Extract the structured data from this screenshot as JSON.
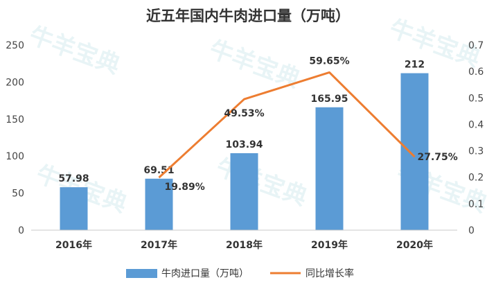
{
  "chart_data": {
    "type": "bar",
    "title": "近五年国内牛肉进口量（万吨）",
    "categories": [
      "2016年",
      "2017年",
      "2018年",
      "2019年",
      "2020年"
    ],
    "series": [
      {
        "name": "牛肉进口量（万吨）",
        "type": "bar",
        "axis": "left",
        "values": [
          57.98,
          69.51,
          103.94,
          165.95,
          212
        ],
        "labels": [
          "57.98",
          "69.51",
          "103.94",
          "165.95",
          "212"
        ],
        "color": "#5b9bd5"
      },
      {
        "name": "同比增长率",
        "type": "line",
        "axis": "right",
        "values": [
          null,
          0.1989,
          0.4953,
          0.5965,
          0.2775
        ],
        "labels": [
          "",
          "19.89%",
          "49.53%",
          "59.65%",
          "27.75%"
        ],
        "color": "#ed7d31"
      }
    ],
    "y_left": {
      "min": 0,
      "max": 250,
      "ticks": [
        "0",
        "50",
        "100",
        "150",
        "200",
        "250"
      ]
    },
    "y_right": {
      "min": 0,
      "max": 0.7,
      "ticks": [
        "0",
        "0.1",
        "0.2",
        "0.3",
        "0.4",
        "0.5",
        "0.6",
        "0.7"
      ]
    },
    "legend_position": "bottom",
    "grid": false
  },
  "watermark": {
    "text": "牛羊宝典"
  }
}
